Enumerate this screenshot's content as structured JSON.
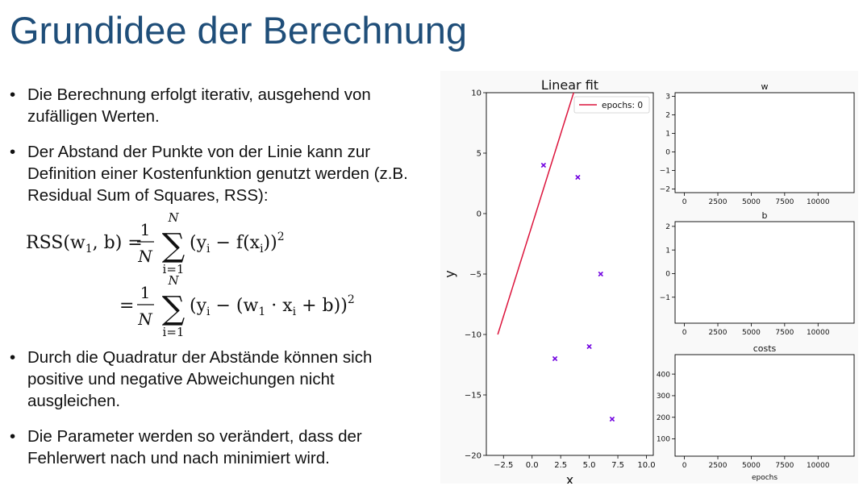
{
  "slide": {
    "title": "Grundidee der Berechnung",
    "bullets_top": [
      "Die Berechnung erfolgt iterativ, ausgehend von zufälligen Werten.",
      "Der Abstand der Punkte von der Linie kann zur Definition einer Kostenfunktion genutzt werden (z.B. Residual Sum of Squares, RSS):"
    ],
    "formula": {
      "lhs": "RSS(w",
      "lhs_sub": "1",
      "lhs_end": ", b) =",
      "frac_num": "1",
      "frac_den": "N",
      "sum_top": "N",
      "sum_bottom": "i=1",
      "sum_symbol": "∑",
      "eq2": "=",
      "term1": "(y",
      "term1_sub": "i",
      "term1_mid": " − f(x",
      "term1_sub2": "i",
      "term1_end": "))",
      "term2": "(y",
      "term2_sub": "i",
      "term2_mid": " − (w",
      "term2_sub2": "1",
      "term2_dot": " · x",
      "term2_sub3": "i",
      "term2_end": " + b))",
      "power": "2"
    },
    "bullets_bottom": [
      "Durch die Quadratur der Abstände können sich positive und negative Abweichungen nicht ausgleichen.",
      "Die Parameter werden so verändert, dass der Fehlerwert nach und nach minimiert wird."
    ]
  },
  "colors": {
    "title": "#1f4e79",
    "line": "#dc143c",
    "points": "#7000e0"
  },
  "chart_data": [
    {
      "type": "scatter",
      "title": "Linear fit",
      "xlabel": "x",
      "ylabel": "y",
      "xlim": [
        -4,
        10.6
      ],
      "ylim": [
        -20,
        10
      ],
      "xticks": [
        -2.5,
        0.0,
        2.5,
        5.0,
        7.5,
        10.0
      ],
      "xtick_labels": [
        "−2.5",
        "0.0",
        "2.5",
        "5.0",
        "7.5",
        "10.0"
      ],
      "yticks": [
        -20,
        -15,
        -10,
        -5,
        0,
        5,
        10
      ],
      "ytick_labels": [
        "−20",
        "−15",
        "−10",
        "−5",
        "0",
        "5",
        "10"
      ],
      "points": {
        "x": [
          1,
          4,
          6,
          2,
          5,
          7
        ],
        "y": [
          4,
          3,
          -5,
          -12,
          -11,
          -17
        ],
        "marker": "x"
      },
      "line": {
        "name": "epochs: 0",
        "x": [
          -3,
          3.8
        ],
        "y": [
          -10,
          10.5
        ]
      },
      "legend": "top-right",
      "grid": false
    },
    {
      "type": "line",
      "title": "w",
      "xlim": [
        -700,
        12700
      ],
      "ylim": [
        -2.2,
        3.2
      ],
      "xticks": [
        0,
        2500,
        5000,
        7500,
        10000
      ],
      "xtick_labels": [
        "0",
        "2500",
        "5000",
        "7500",
        "10000"
      ],
      "yticks": [
        -2,
        -1,
        0,
        1,
        2,
        3
      ],
      "ytick_labels": [
        "−2",
        "−1",
        "0",
        "1",
        "2",
        "3"
      ],
      "series": []
    },
    {
      "type": "line",
      "title": "b",
      "xlim": [
        -700,
        12700
      ],
      "ylim": [
        -2.1,
        2.2
      ],
      "xticks": [
        0,
        2500,
        5000,
        7500,
        10000
      ],
      "xtick_labels": [
        "0",
        "2500",
        "5000",
        "7500",
        "10000"
      ],
      "yticks": [
        -1,
        0,
        1,
        2
      ],
      "ytick_labels": [
        "−1",
        "0",
        "1",
        "2"
      ],
      "series": []
    },
    {
      "type": "line",
      "title": "costs",
      "xlabel": "epochs",
      "xlim": [
        -700,
        12700
      ],
      "ylim": [
        20,
        490
      ],
      "xticks": [
        0,
        2500,
        5000,
        7500,
        10000
      ],
      "xtick_labels": [
        "0",
        "2500",
        "5000",
        "7500",
        "10000"
      ],
      "yticks": [
        100,
        200,
        300,
        400
      ],
      "ytick_labels": [
        "100",
        "200",
        "300",
        "400"
      ],
      "series": []
    }
  ]
}
